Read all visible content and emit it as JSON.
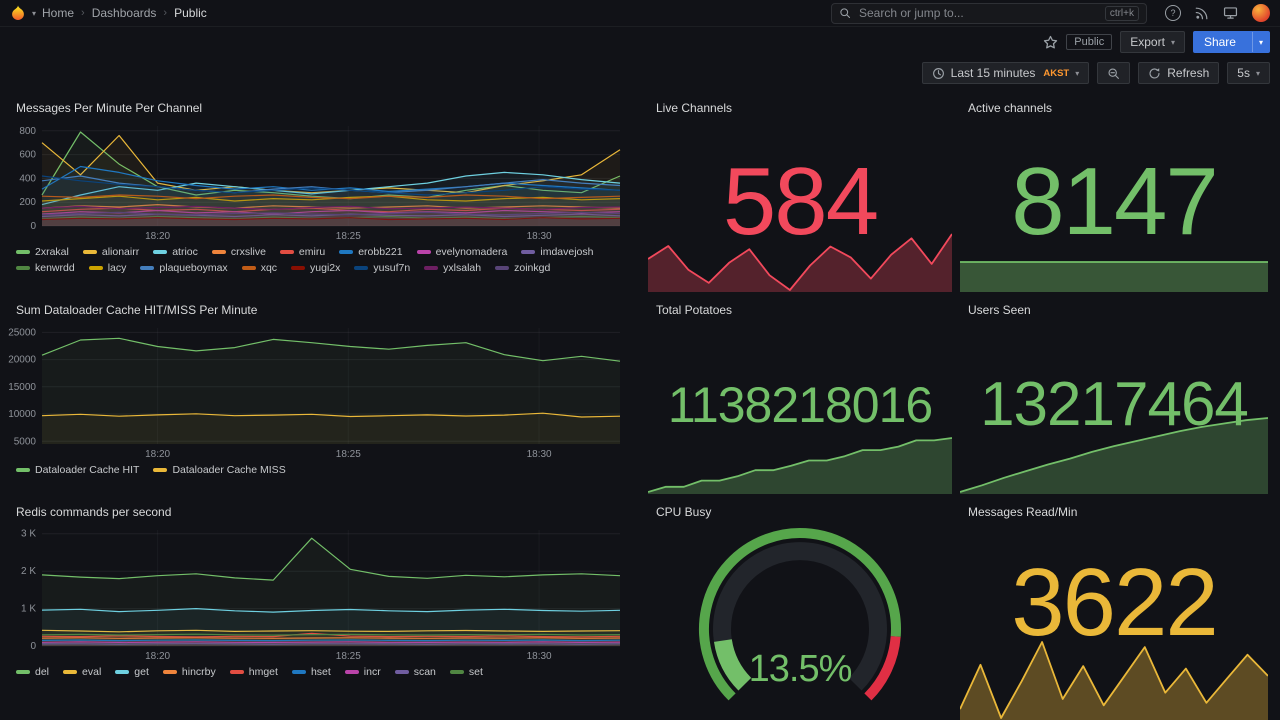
{
  "nav": {
    "breadcrumb": [
      "Home",
      "Dashboards",
      "Public"
    ],
    "search_placeholder": "Search or jump to...",
    "shortcut_hint": "ctrl+k"
  },
  "toolbar": {
    "public_tag": "Public",
    "export_label": "Export",
    "share_label": "Share"
  },
  "timebar": {
    "range_label": "Last 15 minutes",
    "timezone": "AKST",
    "refresh_label": "Refresh",
    "interval": "5s"
  },
  "chart_data": {
    "messages": {
      "type": "line",
      "title": "Messages Per Minute Per Channel",
      "ylim": [
        0,
        840
      ],
      "y_ticks": [
        {
          "v": 0,
          "label": "0"
        },
        {
          "v": 200,
          "label": "200"
        },
        {
          "v": 400,
          "label": "400"
        },
        {
          "v": 600,
          "label": "600"
        },
        {
          "v": 800,
          "label": "800"
        }
      ],
      "x_ticks": [
        {
          "pos": 0.2,
          "label": "18:20"
        },
        {
          "pos": 0.53,
          "label": "18:25"
        },
        {
          "pos": 0.86,
          "label": "18:30"
        }
      ],
      "series": [
        {
          "name": "2xrakal",
          "color": "#73BF69",
          "values": [
            260,
            790,
            520,
            330,
            260,
            300,
            280,
            250,
            230,
            260,
            240,
            300,
            340,
            300,
            280,
            420
          ]
        },
        {
          "name": "alionairr",
          "color": "#EAB839",
          "values": [
            700,
            430,
            760,
            360,
            300,
            330,
            300,
            280,
            300,
            320,
            300,
            280,
            340,
            380,
            430,
            640
          ]
        },
        {
          "name": "atrioc",
          "color": "#6ED0E0",
          "values": [
            180,
            260,
            330,
            300,
            360,
            330,
            300,
            270,
            300,
            330,
            360,
            420,
            450,
            430,
            390,
            360
          ]
        },
        {
          "name": "crxslive",
          "color": "#EF843C",
          "values": [
            150,
            170,
            160,
            180,
            160,
            150,
            170,
            160,
            150,
            160,
            170,
            150,
            160,
            170,
            160,
            150
          ]
        },
        {
          "name": "emiru",
          "color": "#E24D42",
          "values": [
            120,
            140,
            150,
            130,
            140,
            120,
            140,
            150,
            130,
            120,
            140,
            130,
            150,
            140,
            130,
            140
          ]
        },
        {
          "name": "erobb221",
          "color": "#1F78C1",
          "values": [
            310,
            500,
            450,
            380,
            340,
            310,
            330,
            300,
            320,
            290,
            310,
            330,
            360,
            340,
            320,
            300
          ]
        },
        {
          "name": "evelynomadera",
          "color": "#BA43A9",
          "values": [
            100,
            120,
            110,
            130,
            110,
            120,
            100,
            120,
            130,
            110,
            120,
            110,
            130,
            120,
            110,
            120
          ]
        },
        {
          "name": "imdavejosh",
          "color": "#705DA0",
          "values": [
            80,
            95,
            85,
            100,
            90,
            80,
            95,
            85,
            100,
            90,
            85,
            95,
            80,
            90,
            100,
            85
          ]
        },
        {
          "name": "kenwrdd",
          "color": "#508642",
          "values": [
            60,
            75,
            65,
            80,
            70,
            60,
            75,
            65,
            70,
            80,
            65,
            75,
            60,
            70,
            80,
            70
          ]
        },
        {
          "name": "lacy",
          "color": "#CCA300",
          "values": [
            210,
            230,
            250,
            220,
            240,
            210,
            230,
            220,
            240,
            250,
            220,
            210,
            230,
            240,
            220,
            230
          ]
        },
        {
          "name": "plaqueboymax",
          "color": "#447EBC",
          "values": [
            380,
            420,
            360,
            330,
            300,
            280,
            310,
            330,
            300,
            280,
            300,
            330,
            360,
            390,
            360,
            340
          ]
        },
        {
          "name": "xqc",
          "color": "#C15C17",
          "values": [
            250,
            240,
            260,
            250,
            230,
            250,
            260,
            240,
            230,
            250,
            240,
            260,
            250,
            230,
            240,
            250
          ]
        },
        {
          "name": "yugi2x",
          "color": "#890F02",
          "values": [
            55,
            65,
            60,
            70,
            60,
            55,
            65,
            60,
            70,
            55,
            60,
            65,
            55,
            70,
            60,
            65
          ]
        },
        {
          "name": "yusuf7n",
          "color": "#0A437C",
          "values": [
            420,
            380,
            350,
            330,
            300,
            280,
            300,
            320,
            300,
            280,
            260,
            280,
            300,
            330,
            310,
            300
          ]
        },
        {
          "name": "yxlsalah",
          "color": "#6D1F62",
          "values": [
            150,
            165,
            145,
            155,
            165,
            150,
            140,
            155,
            165,
            145,
            150,
            160,
            150,
            140,
            155,
            160
          ]
        },
        {
          "name": "zoinkgd",
          "color": "#584477",
          "values": [
            95,
            105,
            115,
            100,
            95,
            105,
            110,
            100,
            95,
            105,
            115,
            100,
            95,
            105,
            115,
            105
          ]
        }
      ]
    },
    "dataloader": {
      "type": "line",
      "title": "Sum Dataloader Cache HIT/MISS Per Minute",
      "ylim": [
        4500,
        25800
      ],
      "y_ticks": [
        {
          "v": 5000,
          "label": "5000"
        },
        {
          "v": 10000,
          "label": "10000"
        },
        {
          "v": 15000,
          "label": "15000"
        },
        {
          "v": 20000,
          "label": "20000"
        },
        {
          "v": 25000,
          "label": "25000"
        }
      ],
      "x_ticks": [
        {
          "pos": 0.2,
          "label": "18:20"
        },
        {
          "pos": 0.53,
          "label": "18:25"
        },
        {
          "pos": 0.86,
          "label": "18:30"
        }
      ],
      "series": [
        {
          "name": "Dataloader Cache HIT",
          "color": "#73BF69",
          "values": [
            20800,
            23600,
            23900,
            22400,
            21600,
            22200,
            23700,
            23100,
            22400,
            21900,
            22600,
            23100,
            20900,
            19800,
            20600,
            19700
          ]
        },
        {
          "name": "Dataloader Cache MISS",
          "color": "#EAB839",
          "values": [
            9700,
            9950,
            9600,
            9850,
            10050,
            9700,
            9800,
            9950,
            9550,
            9700,
            9850,
            9650,
            9800,
            10150,
            9450,
            9600
          ]
        }
      ]
    },
    "redis": {
      "type": "line",
      "title": "Redis commands per second",
      "ylim": [
        0,
        3100
      ],
      "y_ticks": [
        {
          "v": 0,
          "label": "0"
        },
        {
          "v": 1000,
          "label": "1 K"
        },
        {
          "v": 2000,
          "label": "2 K"
        },
        {
          "v": 3000,
          "label": "3 K"
        }
      ],
      "x_ticks": [
        {
          "pos": 0.2,
          "label": "18:20"
        },
        {
          "pos": 0.53,
          "label": "18:25"
        },
        {
          "pos": 0.86,
          "label": "18:30"
        }
      ],
      "series": [
        {
          "name": "del",
          "color": "#73BF69",
          "values": [
            1900,
            1840,
            1800,
            1880,
            1930,
            1820,
            1760,
            2880,
            2050,
            1860,
            1810,
            1890,
            1850,
            1900,
            1930,
            1880
          ]
        },
        {
          "name": "eval",
          "color": "#EAB839",
          "values": [
            420,
            400,
            380,
            405,
            420,
            390,
            400,
            410,
            395,
            390,
            405,
            415,
            400,
            390,
            400,
            410
          ]
        },
        {
          "name": "get",
          "color": "#6ED0E0",
          "values": [
            960,
            980,
            920,
            955,
            1000,
            940,
            905,
            950,
            975,
            940,
            920,
            960,
            980,
            950,
            930,
            955
          ]
        },
        {
          "name": "hincrby",
          "color": "#EF843C",
          "values": [
            210,
            220,
            205,
            215,
            220,
            210,
            205,
            215,
            220,
            210,
            205,
            215,
            210,
            220,
            205,
            215
          ]
        },
        {
          "name": "hmget",
          "color": "#E24D42",
          "values": [
            260,
            250,
            270,
            255,
            245,
            260,
            250,
            340,
            265,
            250,
            260,
            255,
            270,
            250,
            245,
            260
          ]
        },
        {
          "name": "hset",
          "color": "#1F78C1",
          "values": [
            150,
            160,
            145,
            155,
            160,
            150,
            145,
            155,
            160,
            150,
            145,
            155,
            150,
            160,
            145,
            155
          ]
        },
        {
          "name": "incr",
          "color": "#BA43A9",
          "values": [
            100,
            110,
            95,
            105,
            110,
            100,
            95,
            105,
            110,
            100,
            95,
            105,
            100,
            110,
            95,
            105
          ]
        },
        {
          "name": "scan",
          "color": "#705DA0",
          "values": [
            55,
            60,
            50,
            58,
            62,
            55,
            50,
            58,
            60,
            55,
            50,
            58,
            55,
            60,
            50,
            58
          ]
        },
        {
          "name": "set",
          "color": "#508642",
          "values": [
            300,
            310,
            295,
            305,
            315,
            300,
            290,
            305,
            310,
            300,
            295,
            305,
            300,
            310,
            295,
            305
          ]
        }
      ]
    },
    "live_channels": {
      "type": "stat",
      "title": "Live Channels",
      "value": "584",
      "color": "#F2495C",
      "fill_opacity": 0.3,
      "spark": [
        538,
        562,
        518,
        494,
        531,
        556,
        508,
        481,
        526,
        561,
        541,
        502,
        546,
        576,
        529,
        584
      ]
    },
    "active_channels": {
      "type": "stat",
      "title": "Active channels",
      "value": "8147",
      "color": "#73BF69",
      "fill_opacity": 0.4,
      "spark_min": 0,
      "spark": [
        8140,
        8141,
        8140,
        8142,
        8141,
        8143,
        8142,
        8144,
        8143,
        8145,
        8146,
        8147
      ]
    },
    "total_potatoes": {
      "type": "stat",
      "title": "Total Potatoes",
      "value": "1138218016",
      "color": "#73BF69",
      "fill_opacity": 0.3,
      "spark": [
        1137600000,
        1137660000,
        1137660000,
        1137730000,
        1137730000,
        1137780000,
        1137850000,
        1137850000,
        1137900000,
        1137960000,
        1137960000,
        1138010000,
        1138080000,
        1138080000,
        1138120000,
        1138190000,
        1138190000,
        1138218016
      ]
    },
    "users_seen": {
      "type": "stat",
      "title": "Users Seen",
      "value": "13217464",
      "color": "#73BF69",
      "fill_opacity": 0.3,
      "spark": [
        13208600,
        13209400,
        13210300,
        13211100,
        13211900,
        13212600,
        13213400,
        13214100,
        13214700,
        13215300,
        13215900,
        13216400,
        13216800,
        13217200,
        13217464
      ]
    },
    "cpu_busy": {
      "type": "gauge",
      "title": "CPU Busy",
      "value": 13.5,
      "display": "13.5%",
      "min": 0,
      "max": 100,
      "threshold": 85,
      "color": "#56A64B",
      "text_color": "#73BF69",
      "alert_color": "#E02F44"
    },
    "messages_read": {
      "type": "stat",
      "title": "Messages Read/Min",
      "value": "3622",
      "color": "#EAB839",
      "fill_opacity": 0.35,
      "spark": [
        3360,
        3710,
        3290,
        3580,
        3890,
        3440,
        3700,
        3390,
        3620,
        3850,
        3490,
        3680,
        3410,
        3600,
        3790,
        3622
      ]
    }
  }
}
